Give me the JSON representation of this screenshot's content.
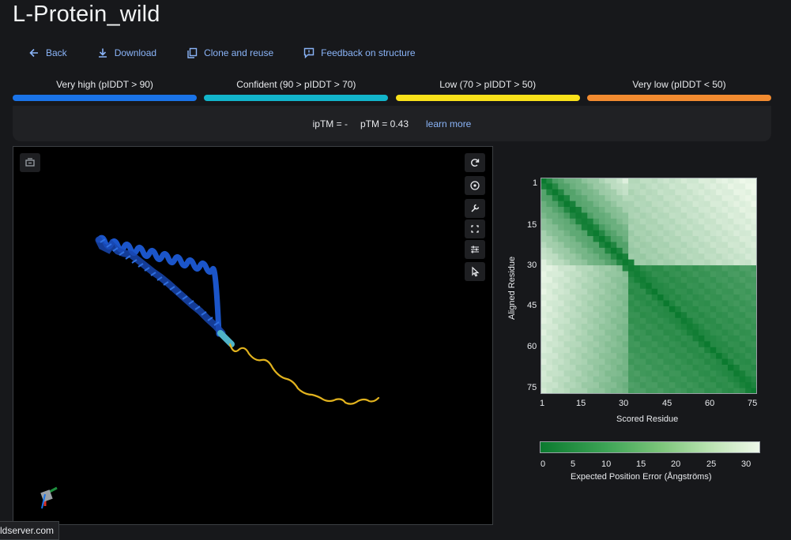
{
  "page": {
    "title": "L-Protein_wild"
  },
  "actions": [
    {
      "label": "Back",
      "icon": "arrow-left-icon"
    },
    {
      "label": "Download",
      "icon": "download-icon"
    },
    {
      "label": "Clone and reuse",
      "icon": "copy-icon"
    },
    {
      "label": "Feedback on structure",
      "icon": "feedback-icon"
    }
  ],
  "legend": [
    {
      "label": "Very high (pIDDT > 90)",
      "color": "#1a73e8"
    },
    {
      "label": "Confident (90 > pIDDT > 70)",
      "color": "#12b5cb"
    },
    {
      "label": "Low (70 > pIDDT > 50)",
      "color": "#f9e11a"
    },
    {
      "label": "Very low (pIDDT < 50)",
      "color": "#f28b30"
    }
  ],
  "metrics": {
    "iptm": "ipTM = -",
    "ptm": "pTM = 0.43",
    "learn_more": "learn more"
  },
  "viewer": {
    "buttons": [
      "snapshot-icon",
      "rotate-icon",
      "center-icon",
      "tools-icon",
      "fullscreen-icon",
      "settings-icon",
      "select-icon"
    ]
  },
  "pae": {
    "ylabel": "Aligned Residue",
    "xlabel": "Scored Residue",
    "yticks": [
      "1",
      "15",
      "30",
      "45",
      "60",
      "75"
    ],
    "xticks": [
      "1",
      "15",
      "30",
      "45",
      "60",
      "75"
    ],
    "colorbar_ticks": [
      "0",
      "5",
      "10",
      "15",
      "20",
      "25",
      "30"
    ],
    "colorbar_label": "Expected Position Error (Ångströms)",
    "colors": {
      "low": "#0b7a2f",
      "high": "#eef8ea"
    }
  },
  "status": {
    "url": "ldserver.com"
  }
}
